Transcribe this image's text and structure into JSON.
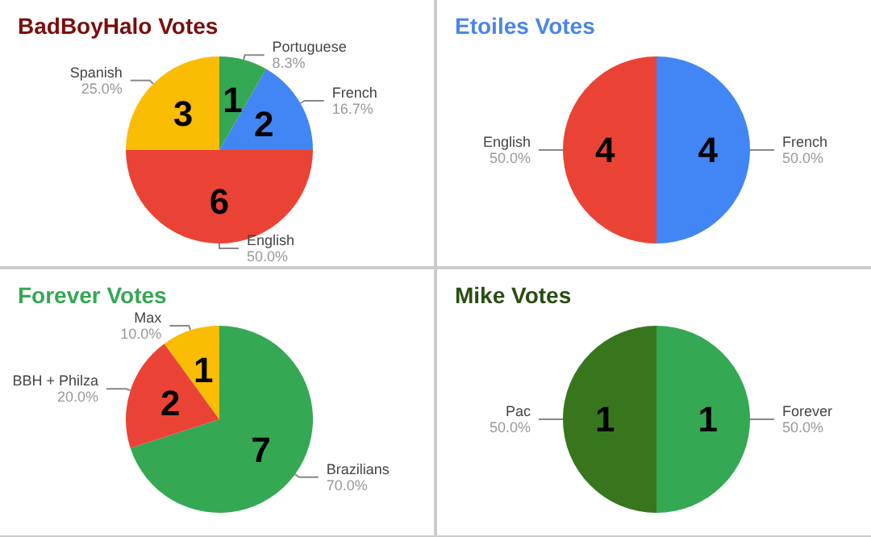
{
  "chart_data": [
    {
      "type": "pie",
      "title": "BadBoyHalo Votes",
      "categories": [
        "Portuguese",
        "French",
        "English",
        "Spanish"
      ],
      "values": [
        1,
        2,
        6,
        3
      ],
      "colors": [
        "#34a853",
        "#4285f4",
        "#ea4335",
        "#fbbc04"
      ],
      "data_labels": true,
      "legend": false,
      "annotations": [
        "8.3%",
        "16.7%",
        "50.0%",
        "25.0%"
      ]
    },
    {
      "type": "pie",
      "title": "Etoiles Votes",
      "categories": [
        "French",
        "English"
      ],
      "values": [
        4,
        4
      ],
      "colors": [
        "#4285f4",
        "#ea4335"
      ],
      "data_labels": true,
      "legend": false,
      "annotations": [
        "50.0%",
        "50.0%"
      ]
    },
    {
      "type": "pie",
      "title": "Forever Votes",
      "categories": [
        "Brazilians",
        "BBH + Philza",
        "Max"
      ],
      "values": [
        7,
        2,
        1
      ],
      "colors": [
        "#34a853",
        "#ea4335",
        "#fbbc04"
      ],
      "data_labels": true,
      "legend": false,
      "annotations": [
        "70.0%",
        "20.0%",
        "10.0%"
      ]
    },
    {
      "type": "pie",
      "title": "Mike Votes",
      "categories": [
        "Forever",
        "Pac"
      ],
      "values": [
        1,
        1
      ],
      "colors": [
        "#34a853",
        "#38761d"
      ],
      "data_labels": true,
      "legend": false,
      "annotations": [
        "50.0%",
        "50.0%"
      ]
    }
  ]
}
